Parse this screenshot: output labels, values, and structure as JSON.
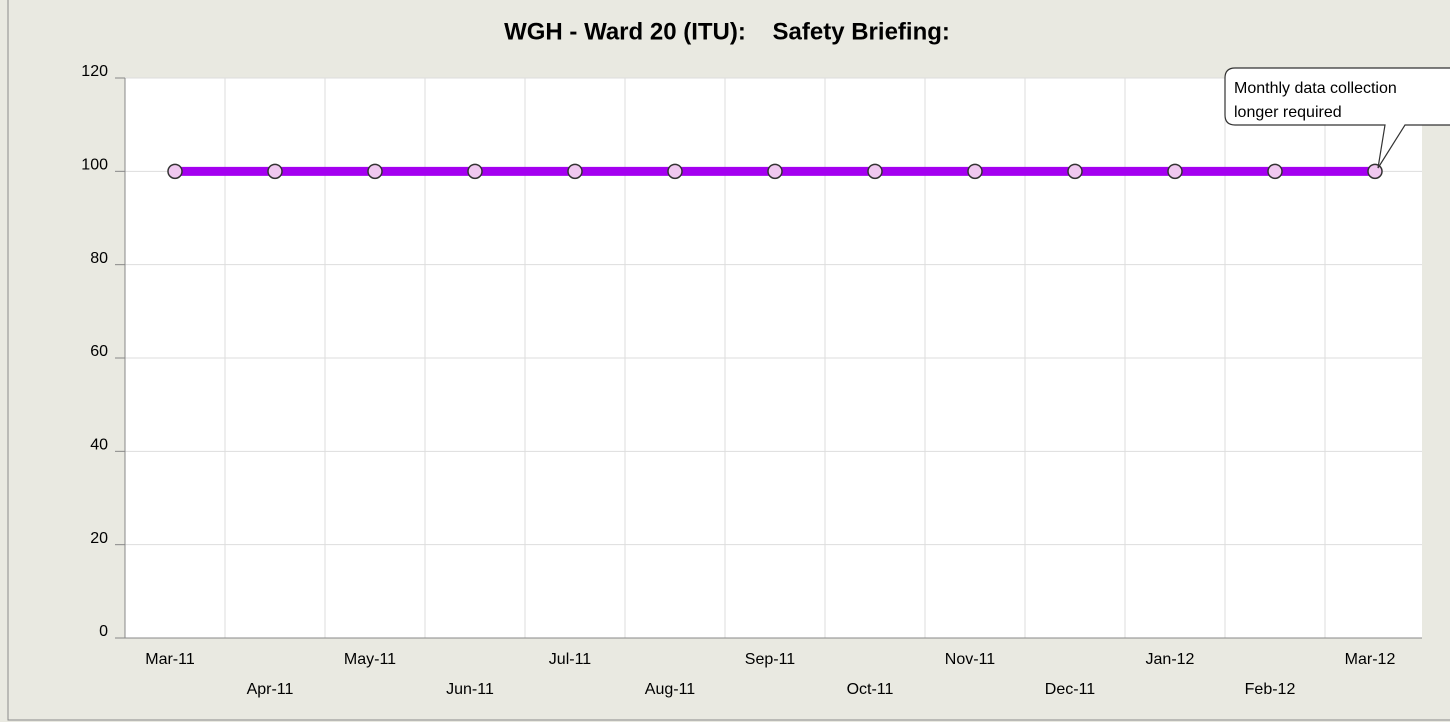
{
  "chart_data": {
    "type": "line",
    "title": "WGH - Ward 20 (ITU):    Safety Briefing:",
    "categories": [
      "Mar-11",
      "Apr-11",
      "May-11",
      "Jun-11",
      "Jul-11",
      "Aug-11",
      "Sep-11",
      "Oct-11",
      "Nov-11",
      "Dec-11",
      "Jan-12",
      "Feb-12",
      "Mar-12"
    ],
    "series": [
      {
        "name": "Safety Briefing",
        "color": "#a400f0",
        "values": [
          100,
          100,
          100,
          100,
          100,
          100,
          100,
          100,
          100,
          100,
          100,
          100,
          100
        ]
      }
    ],
    "ylim": [
      0,
      120
    ],
    "yticks": [
      0,
      20,
      40,
      60,
      80,
      100,
      120
    ],
    "grid": true,
    "annotation": [
      "Monthly data collection",
      "longer required"
    ]
  }
}
